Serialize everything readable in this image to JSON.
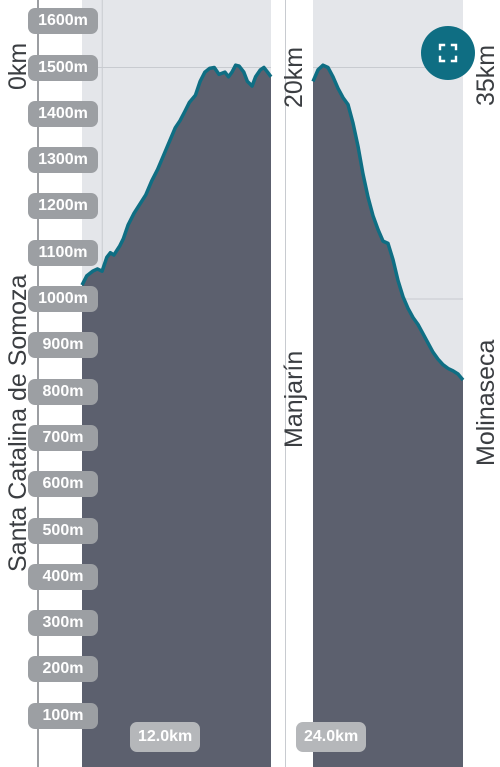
{
  "colors": {
    "background": "#ffffff",
    "band": "#e4e6ea",
    "area_fill": "#5c606e",
    "profile_line": "#0f6e83",
    "pill": "#9c9fa3",
    "button": "#0f6e83"
  },
  "waypoints": [
    {
      "distance_label": "0km",
      "name": "Santa Catalina de Somoza"
    },
    {
      "distance_label": "20km",
      "name": "Manjarín"
    },
    {
      "distance_label": "35km",
      "name": "Molinaseca"
    }
  ],
  "buttons": {
    "expand_icon": "expand-icon"
  },
  "chart_data": {
    "type": "area",
    "title": "",
    "xlabel": "",
    "ylabel": "",
    "ylim": [
      0,
      1700
    ],
    "grid": true,
    "y_ticks": [
      "100m",
      "200m",
      "300m",
      "400m",
      "500m",
      "600m",
      "700m",
      "800m",
      "900m",
      "1000m",
      "1100m",
      "1200m",
      "1300m",
      "1400m",
      "1500m",
      "1600m"
    ],
    "x_ticks": [
      {
        "value": 12,
        "label": "12.0km"
      },
      {
        "value": 24,
        "label": "24.0km"
      }
    ],
    "visible_ranges_km": [
      [
        6.9,
        22.9
      ],
      [
        23.0,
        35.0
      ]
    ],
    "series": [
      {
        "x": [
          6.9,
          7.3,
          7.8,
          8.2,
          8.6,
          9.0,
          9.3,
          9.6,
          10.1,
          10.4,
          10.8,
          11.3,
          11.8,
          12.3,
          12.8,
          13.3,
          13.8,
          14.3,
          14.8,
          15.2,
          15.6,
          16.0,
          16.5,
          16.9,
          17.3,
          17.7,
          18.1,
          18.5,
          19.0,
          19.3,
          19.6,
          19.9,
          20.2,
          20.6,
          20.9,
          21.3,
          21.6,
          22.0,
          22.3,
          22.6,
          22.9
        ],
        "y": [
          1030,
          1050,
          1060,
          1065,
          1060,
          1090,
          1100,
          1095,
          1115,
          1130,
          1160,
          1185,
          1205,
          1225,
          1255,
          1280,
          1310,
          1340,
          1370,
          1385,
          1405,
          1425,
          1440,
          1470,
          1490,
          1498,
          1500,
          1485,
          1490,
          1480,
          1490,
          1505,
          1503,
          1490,
          1470,
          1460,
          1480,
          1495,
          1500,
          1490,
          1480
        ]
      },
      {
        "x": [
          23.0,
          23.4,
          23.8,
          24.2,
          24.6,
          25.0,
          25.4,
          25.8,
          26.2,
          26.6,
          27.0,
          27.4,
          27.8,
          28.2,
          28.6,
          29.0,
          29.4,
          29.8,
          30.2,
          30.6,
          31.0,
          31.4,
          31.8,
          32.2,
          32.6,
          33.0,
          33.4,
          33.8,
          34.2,
          34.6,
          35.0
        ],
        "y": [
          1470,
          1495,
          1505,
          1500,
          1480,
          1455,
          1435,
          1420,
          1380,
          1330,
          1270,
          1220,
          1180,
          1150,
          1125,
          1120,
          1085,
          1040,
          1005,
          980,
          960,
          945,
          925,
          905,
          885,
          870,
          858,
          850,
          845,
          838,
          825
        ]
      }
    ]
  }
}
